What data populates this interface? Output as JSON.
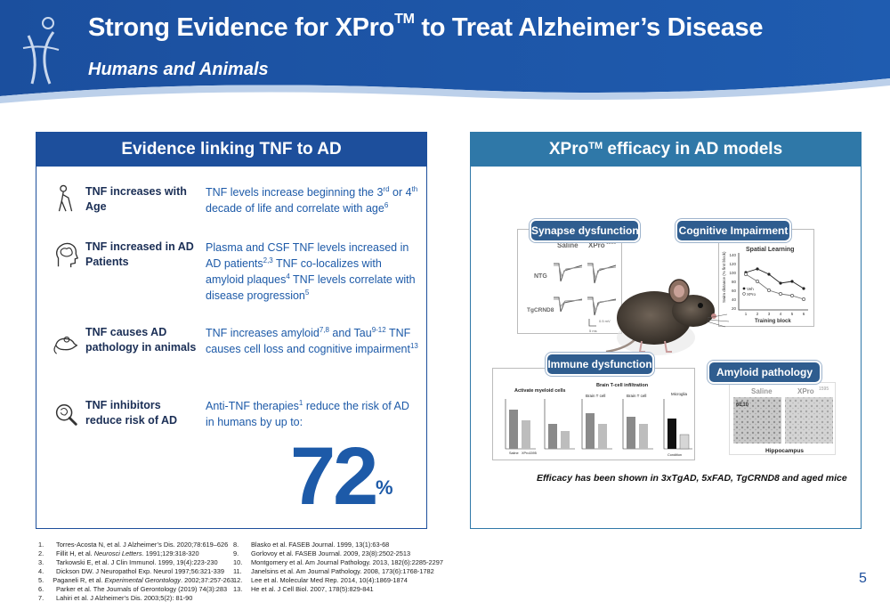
{
  "header": {
    "title_pre": "Strong Evidence for XPro",
    "title_sup": "TM",
    "title_post": " to Treat Alzheimer’s Disease",
    "subtitle": "Humans and Animals"
  },
  "left_panel": {
    "title": "Evidence linking TNF to AD",
    "rows": [
      {
        "icon": "elderly-person-icon",
        "label": "TNF increases with Age"
      },
      {
        "icon": "brain-head-icon",
        "label": "TNF increased in AD Patients"
      },
      {
        "icon": "mouse-icon",
        "label": "TNF causes AD pathology in animals"
      },
      {
        "icon": "magnifier-icon",
        "label": "TNF inhibitors reduce risk of AD"
      }
    ],
    "r1": {
      "a": "TNF levels increase beginning the 3",
      "s1": "rd",
      "b": " or 4",
      "s2": "th",
      "c": " decade of life and correlate with age",
      "s3": "6"
    },
    "r2": {
      "a": "Plasma and CSF TNF levels increased in  AD patients",
      "s1": "2,3",
      "b": "  TNF co-localizes with amyloid plaques",
      "s2": "4",
      "c": "  TNF levels correlate with disease progression",
      "s3": "5"
    },
    "r3": {
      "a": "TNF increases amyloid",
      "s1": "7,8",
      "b": " and Tau",
      "s2": "9-12",
      "c": " TNF causes cell loss and cognitive impairment",
      "s3": "13"
    },
    "r4": {
      "a": "Anti-TNF therapies",
      "s1": "1",
      "b": " reduce the risk of AD in humans by up to:"
    },
    "big_number": "72",
    "big_unit": "%"
  },
  "right_panel": {
    "title_pre": "XPro",
    "title_sup": "TM",
    "title_post": " efficacy in AD models",
    "synapse": {
      "label": "Synapse dysfunction",
      "col1": "Saline",
      "col2": "XPro",
      "col2_sup": "1595",
      "row1": "NTG",
      "row2": "TgCRND8",
      "scale_v": "0.5 mV",
      "scale_t": "5 ms"
    },
    "cognitive": {
      "label": "Cognitive Impairment",
      "chart_title": "Spatial Learning",
      "ylabel": "Swim distance (% first block)",
      "xlabel": "Training block",
      "legend1": "Veh",
      "legend2": "XPro",
      "yticks": [
        "140",
        "120",
        "100",
        "80",
        "60",
        "40",
        "20"
      ],
      "xticks": [
        "1",
        "2",
        "3",
        "4",
        "5",
        "6"
      ]
    },
    "immune": {
      "label": "Immune dysfunction",
      "t1": "Activate myeloid cells",
      "t2": "Brain T-cell infiltration",
      "t2a": "Brain T cell",
      "t2b": "Brain T cell",
      "t3": "Microglia",
      "x1": "Saline",
      "x2": "XPro1595",
      "cond": "Condition"
    },
    "amyloid": {
      "label": "Amyloid pathology",
      "col1": "Saline",
      "col2": "XPro",
      "col2_sup": "1595",
      "stain": "6E10",
      "region": "Hippocampus"
    },
    "efficacy_note": "Efficacy has been shown in 3xTgAD, 5xFAD, TgCRND8 and aged mice"
  },
  "references_left": [
    {
      "n": "1.",
      "a": "Torres-Acosta N, et al. J Alzheimer’s Dis. 2020;78:619–626"
    },
    {
      "n": "2.",
      "a": "Fillit H, et al. ",
      "i": "Neurosci Letters",
      "b": ". 1991;129:318-320"
    },
    {
      "n": "3.",
      "a": "Tarkowski E, et al. J Clin Immunol. 1999, 19(4):223-230"
    },
    {
      "n": "4.",
      "a": "Dickson DW. J Neuropathol Exp. Neurol 1997;56:321-339"
    },
    {
      "n": "5.",
      "a": "Paganeli R, et al. ",
      "i": "Experimental Gerontology",
      "b": ". 2002;37:257-263"
    },
    {
      "n": "6.",
      "a": "Parker et al.  The Journals of Gerontology (2019) 74(3):283"
    },
    {
      "n": "7.",
      "a": "Lahiri et al. J Alzheimer’s Dis. 2003;5(2): 81-90"
    }
  ],
  "references_right": [
    {
      "n": "8.",
      "a": "Blasko et al. FASEB Journal. 1999, 13(1):63-68"
    },
    {
      "n": "9.",
      "a": "Gorlovoy et al. FASEB Journal. 2009, 23(8):2502-2513"
    },
    {
      "n": "10.",
      "a": "Montgomery et al. Am Journal Pathology. 2013, 182(6):2285-2297"
    },
    {
      "n": "11.",
      "a": "Janelsins et al. Am Journal Pathology. 2008, 173(6):1768-1782"
    },
    {
      "n": "12.",
      "a": "Lee et al. Molecular Med Rep. 2014, 10(4):1869-1874"
    },
    {
      "n": "13.",
      "a": "He et al. J Cell Biol. 2007, 178(5):829-841"
    }
  ],
  "page_number": "5",
  "colors": {
    "header_blue": "#1f56a6",
    "panel_left": "#1d4f9c",
    "panel_right": "#2f78a8",
    "text_blue": "#1d5aa8"
  }
}
